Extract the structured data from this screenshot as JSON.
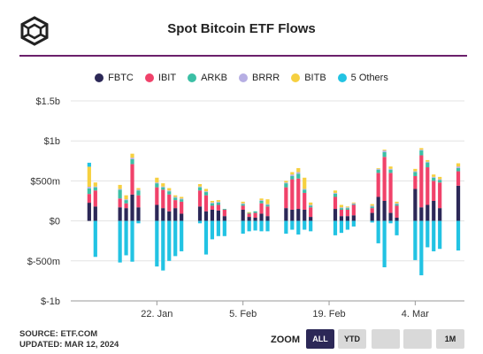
{
  "title": "Spot Bitcoin ETF Flows",
  "legend": [
    {
      "name": "FBTC",
      "color": "#2c2857"
    },
    {
      "name": "IBIT",
      "color": "#f0426a"
    },
    {
      "name": "ARKB",
      "color": "#3bbfa5"
    },
    {
      "name": "BRRR",
      "color": "#b6aee3"
    },
    {
      "name": "BITB",
      "color": "#f6d040"
    },
    {
      "name": "5 Others",
      "color": "#22c3e3"
    }
  ],
  "source_line": "SOURCE: ETF.COM",
  "updated_line": "UPDATED: MAR 12, 2024",
  "zoom": {
    "label": "ZOOM",
    "buttons": [
      {
        "label": "ALL",
        "active": true
      },
      {
        "label": "YTD",
        "active": false
      },
      {
        "label": "",
        "active": false
      },
      {
        "label": "",
        "active": false
      },
      {
        "label": "",
        "active": false
      },
      {
        "label": "1M",
        "active": false
      }
    ]
  },
  "chart_data": {
    "type": "bar",
    "stacked": true,
    "grid": true,
    "yticks": [
      "$1.5b",
      "$1b",
      "$500m",
      "$0",
      "$-500m",
      "$-1b"
    ],
    "ytick_values": [
      1500,
      1000,
      500,
      0,
      -500,
      -1000
    ],
    "ylim": [
      -1000,
      1500
    ],
    "xticks": [
      "22. Jan",
      "5. Feb",
      "19. Feb",
      "4. Mar"
    ],
    "xtick_dates": [
      "2024-01-22",
      "2024-02-05",
      "2024-02-19",
      "2024-03-04"
    ],
    "dates": [
      "2024-01-11",
      "2024-01-12",
      "2024-01-16",
      "2024-01-17",
      "2024-01-18",
      "2024-01-19",
      "2024-01-22",
      "2024-01-23",
      "2024-01-24",
      "2024-01-25",
      "2024-01-26",
      "2024-01-29",
      "2024-01-30",
      "2024-01-31",
      "2024-02-01",
      "2024-02-02",
      "2024-02-05",
      "2024-02-06",
      "2024-02-07",
      "2024-02-08",
      "2024-02-09",
      "2024-02-12",
      "2024-02-13",
      "2024-02-14",
      "2024-02-15",
      "2024-02-16",
      "2024-02-20",
      "2024-02-21",
      "2024-02-22",
      "2024-02-23",
      "2024-02-26",
      "2024-02-27",
      "2024-02-28",
      "2024-02-29",
      "2024-03-01",
      "2024-03-04",
      "2024-03-05",
      "2024-03-06",
      "2024-03-07",
      "2024-03-08",
      "2024-03-11"
    ],
    "series": [
      {
        "name": "FBTC",
        "color": "#2c2857",
        "values": [
          227,
          180,
          170,
          160,
          330,
          170,
          200,
          160,
          120,
          160,
          90,
          180,
          120,
          140,
          130,
          60,
          140,
          50,
          40,
          90,
          60,
          160,
          140,
          150,
          140,
          50,
          150,
          60,
          60,
          70,
          100,
          300,
          250,
          100,
          40,
          400,
          170,
          200,
          250,
          160,
          440
        ]
      },
      {
        "name": "IBIT",
        "color": "#f0426a",
        "values": [
          110,
          200,
          110,
          60,
          380,
          150,
          220,
          230,
          210,
          100,
          150,
          200,
          200,
          50,
          70,
          80,
          50,
          40,
          60,
          130,
          120,
          260,
          380,
          380,
          210,
          120,
          150,
          80,
          80,
          130,
          60,
          300,
          550,
          500,
          150,
          160,
          650,
          470,
          250,
          320,
          180
        ]
      },
      {
        "name": "ARKB",
        "color": "#3bbfa5",
        "values": [
          70,
          40,
          110,
          40,
          60,
          60,
          50,
          30,
          40,
          30,
          30,
          40,
          40,
          30,
          30,
          10,
          20,
          10,
          20,
          30,
          20,
          50,
          40,
          60,
          40,
          20,
          40,
          20,
          20,
          10,
          20,
          40,
          60,
          40,
          20,
          50,
          60,
          60,
          40,
          30,
          40
        ]
      },
      {
        "name": "BRRR",
        "color": "#b6aee3",
        "values": [
          20,
          10,
          10,
          10,
          20,
          10,
          10,
          10,
          10,
          10,
          10,
          10,
          10,
          10,
          10,
          0,
          10,
          0,
          0,
          10,
          10,
          10,
          20,
          20,
          10,
          10,
          10,
          10,
          10,
          10,
          10,
          10,
          20,
          10,
          10,
          10,
          10,
          10,
          10,
          10,
          20
        ]
      },
      {
        "name": "BITB",
        "color": "#f6d040",
        "values": [
          250,
          50,
          50,
          50,
          50,
          20,
          60,
          40,
          30,
          20,
          20,
          30,
          30,
          20,
          20,
          0,
          20,
          10,
          0,
          20,
          60,
          20,
          30,
          50,
          140,
          30,
          30,
          30,
          10,
          10,
          20,
          10,
          10,
          30,
          20,
          30,
          20,
          20,
          30,
          30,
          40
        ]
      },
      {
        "name": "5 Others",
        "color": "#22c3e3",
        "values": [
          50,
          -450,
          -520,
          -430,
          -510,
          -30,
          -570,
          -620,
          -500,
          -440,
          -380,
          -30,
          -420,
          -230,
          -190,
          -190,
          -160,
          -130,
          -120,
          -130,
          -130,
          -160,
          -110,
          -170,
          -110,
          -130,
          -180,
          -150,
          -110,
          -70,
          -20,
          -280,
          -580,
          -30,
          -180,
          -490,
          -680,
          -330,
          -380,
          -350,
          -370
        ]
      }
    ]
  }
}
